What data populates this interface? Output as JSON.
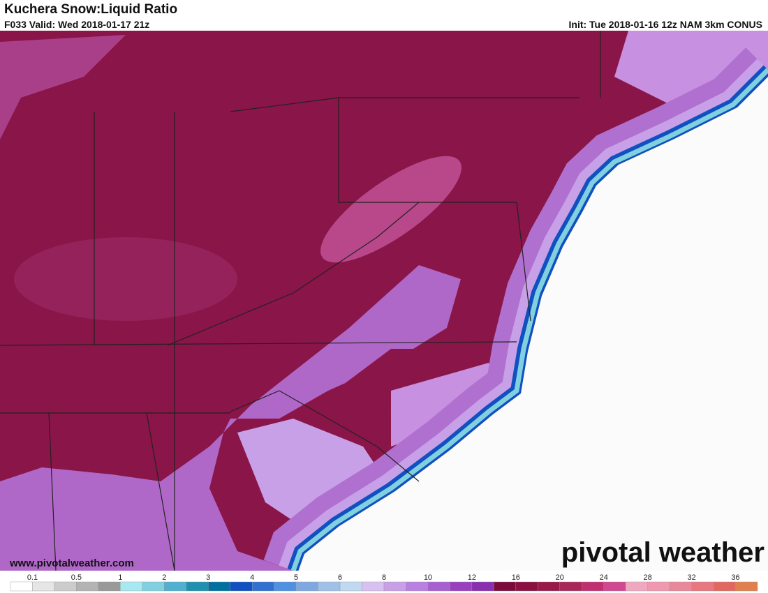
{
  "header": {
    "title": "Kuchera Snow:Liquid Ratio",
    "valid": "F033 Valid: Wed 2018-01-17 21z",
    "init": "Init: Tue 2018-01-16 12z NAM 3km CONUS"
  },
  "footer": {
    "url": "www.pivotalweather.com",
    "logo": "pivotal weather"
  },
  "colorbar": {
    "ticks": [
      0.1,
      0.5,
      1,
      2,
      3,
      4,
      5,
      6,
      8,
      10,
      12,
      16,
      20,
      24,
      28,
      32,
      36
    ],
    "colors": [
      "#ffffff",
      "#e6e6e6",
      "#cccccc",
      "#b3b3b3",
      "#999999",
      "#a8e8f0",
      "#80d0e0",
      "#50b0d0",
      "#2090b0",
      "#0070a0",
      "#1050c0",
      "#3070d0",
      "#5090e0",
      "#80a8e0",
      "#a0c0e8",
      "#c0d8f0",
      "#d8c0f0",
      "#c8a0e8",
      "#b880e0",
      "#a860d0",
      "#9840c0",
      "#8830b0",
      "#7a0a3a",
      "#8a1040",
      "#981848",
      "#a82858",
      "#c03070",
      "#d04890",
      "#f0a8c0",
      "#f098b0",
      "#e88898",
      "#e87880",
      "#e06860",
      "#e08050"
    ]
  }
}
